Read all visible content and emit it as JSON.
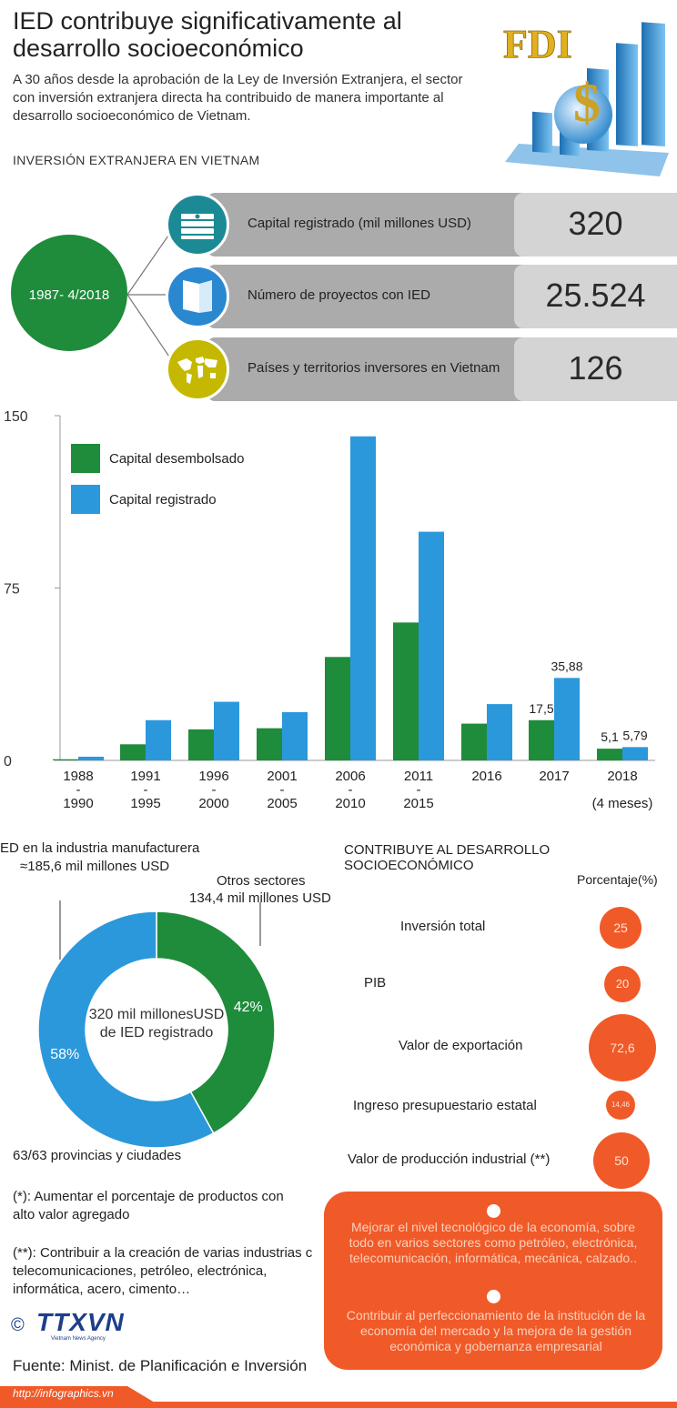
{
  "header": {
    "title": "IED contribuye significativamente al desarrollo socioeconómico",
    "subtitle": "A 30 años desde la aprobación de la Ley de Inversión Extranjera, el sector con inversión extranjera directa ha contribuido de manera importante al desarrollo socioeconómico de Vietnam.",
    "section_title": "INVERSIÓN EXTRANJERA EN VIETNAM",
    "logo_text": "FDI"
  },
  "stats": {
    "period": "1987- 4/2018",
    "rows": [
      {
        "label": "Capital registrado (mil millones USD)",
        "value": "320",
        "icon": "money-stack-icon",
        "color": "#1b8a95"
      },
      {
        "label": "Número de proyectos con IED",
        "value": "25.524",
        "icon": "folder-icon",
        "color": "#2a88d0"
      },
      {
        "label": "Países y territorios inversores en Vietnam",
        "value": "126",
        "icon": "world-map-icon",
        "color": "#c5b800"
      }
    ]
  },
  "chart_data": {
    "type": "bar",
    "y_ticks": [
      "150",
      "75",
      "0"
    ],
    "ylim": [
      0,
      150
    ],
    "categories": [
      {
        "top": "1988",
        "mid": "-",
        "bottom": "1990"
      },
      {
        "top": "1991",
        "mid": "-",
        "bottom": "1995"
      },
      {
        "top": "1996",
        "mid": "-",
        "bottom": "2000"
      },
      {
        "top": "2001",
        "mid": "-",
        "bottom": "2005"
      },
      {
        "top": "2006",
        "mid": "-",
        "bottom": "2010"
      },
      {
        "top": "2011",
        "mid": "-",
        "bottom": "2015"
      },
      {
        "top": "2016",
        "mid": "",
        "bottom": ""
      },
      {
        "top": "2017",
        "mid": "",
        "bottom": ""
      },
      {
        "top": "2018",
        "mid": "",
        "bottom": "(4 meses)"
      }
    ],
    "series": [
      {
        "name": "Capital desembolsado",
        "color": "#1e8c3a",
        "values": [
          0.5,
          7,
          13.5,
          14,
          45,
          60,
          16,
          17.5,
          5.1
        ],
        "labels": [
          "",
          "",
          "",
          "",
          "",
          "",
          "",
          "17,5",
          "5,1"
        ]
      },
      {
        "name": "Capital registrado",
        "color": "#2b98dc",
        "values": [
          1.6,
          17.5,
          25.5,
          21,
          141,
          99.5,
          24.5,
          35.88,
          5.79
        ],
        "labels": [
          "",
          "",
          "",
          "",
          "",
          "",
          "",
          "35,88",
          "5,79"
        ]
      }
    ],
    "legend_position": "top-left"
  },
  "donut": {
    "manufacturing_label": "ED en la industria manufacturera",
    "manufacturing_value": "≈185,6 mil millones USD",
    "other_label": "Otros sectores",
    "other_value": "134,4 mil millones USD",
    "center_line1": "320 mil millonesUSD",
    "center_line2": "de IED registrado",
    "slices": [
      {
        "label": "58%",
        "value": 58,
        "color": "#2b98dc"
      },
      {
        "label": "42%",
        "value": 42,
        "color": "#1e8c3a"
      }
    ],
    "provinces": "63/63 provincias y ciudades"
  },
  "contribution": {
    "title": "CONTRIBUYE AL DESARROLLO SOCIOECONÓMICO",
    "unit": "Porcentaje(%)",
    "items": [
      {
        "label": "Inversión total",
        "value": "25"
      },
      {
        "label": "PIB",
        "value": "20"
      },
      {
        "label": "Valor de exportación",
        "value": "72,6"
      },
      {
        "label": "Ingreso presupuestario estatal",
        "value": "14,46"
      },
      {
        "label": "Valor de producción industrial (**)",
        "value": "50"
      }
    ]
  },
  "orange_box": {
    "point1": "Mejorar el nivel tecnológico de la economía, sobre todo en varios sectores como petróleo, electrónica, telecomunicación, informática, mecánica, calzado..",
    "point2": "Contribuir al perfeccionamiento de la institución de la economía del mercado y la mejora de la gestión económica y gobernanza empresarial"
  },
  "notes": {
    "note1": "(*): Aumentar el porcentaje de productos con alto valor agregado",
    "note2": "(**): Contribuir a la creación de varias industrias c telecomunicaciones, petróleo, electrónica, informática, acero, cimento…"
  },
  "footer": {
    "copyright": "©",
    "agency": "TTXVN",
    "agency_sub": "Vietnam News Agency",
    "source": "Fuente: Minist. de Planificación e Inversión",
    "url": "http://infographics.vn"
  }
}
